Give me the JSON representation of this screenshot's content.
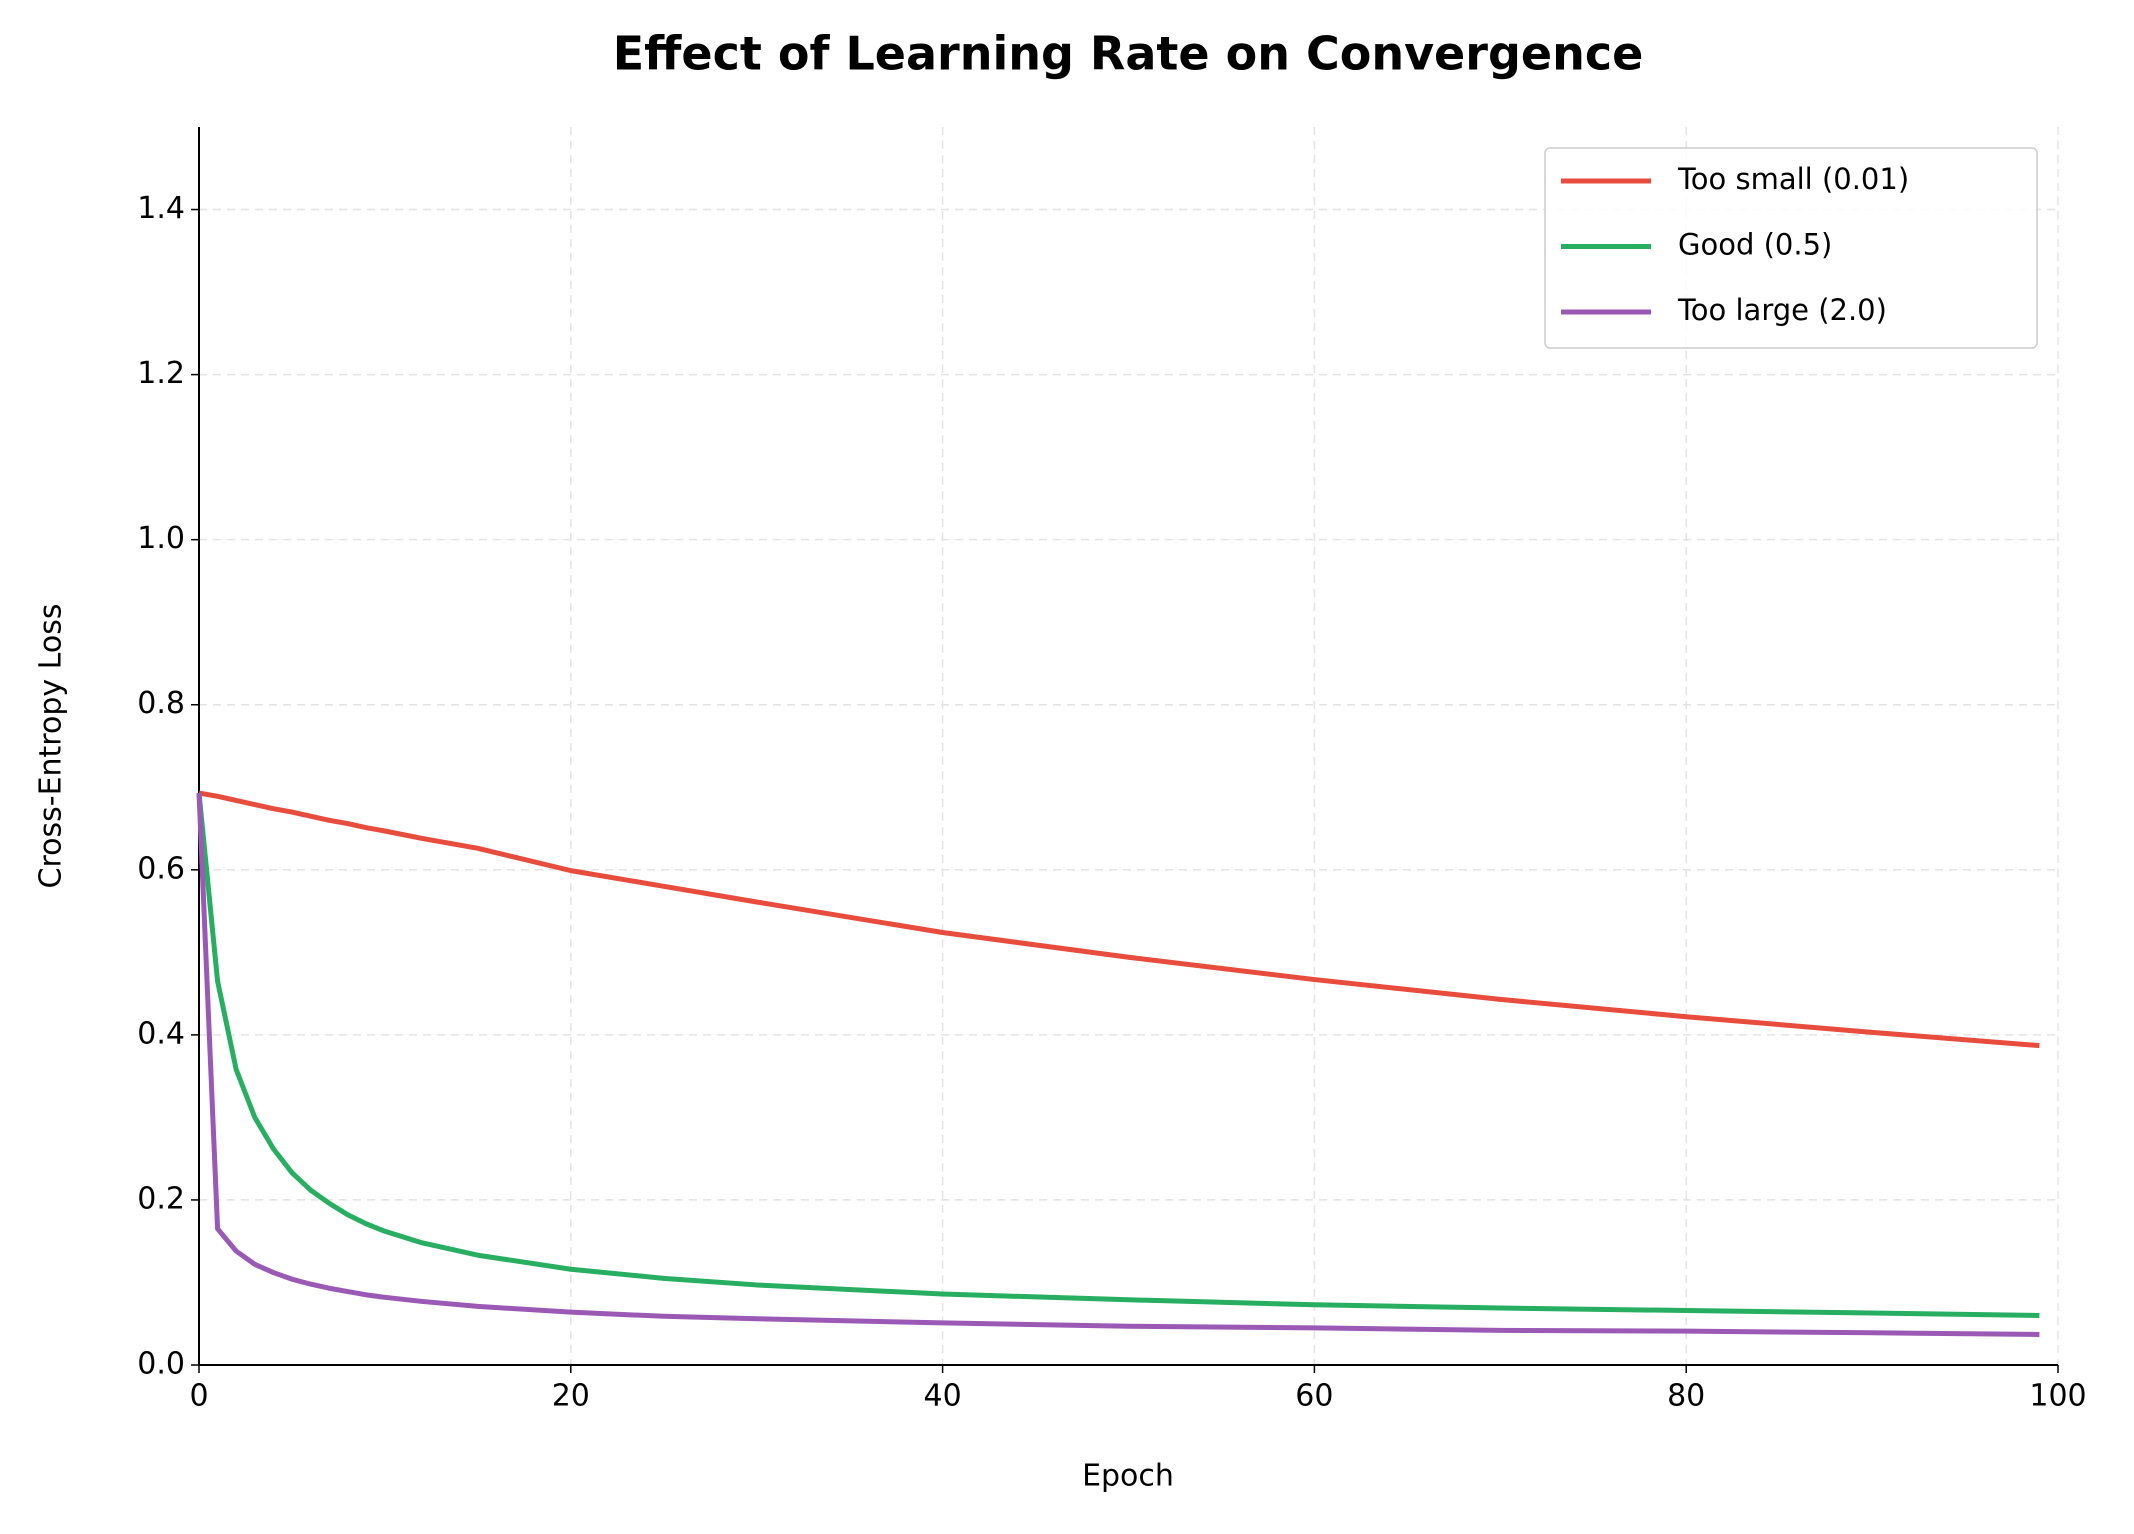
{
  "chart_data": {
    "type": "line",
    "title": "Effect of Learning Rate on Convergence",
    "xlabel": "Epoch",
    "ylabel": "Cross-Entropy Loss",
    "x": [
      0,
      1,
      2,
      3,
      4,
      5,
      6,
      7,
      8,
      9,
      10,
      12,
      15,
      20,
      25,
      30,
      40,
      50,
      60,
      70,
      80,
      90,
      99
    ],
    "series": [
      {
        "name": "Too small (0.01)",
        "color": "#e74c3c",
        "values": [
          0.693,
          0.689,
          0.684,
          0.679,
          0.674,
          0.67,
          0.665,
          0.66,
          0.656,
          0.651,
          0.647,
          0.638,
          0.626,
          0.599,
          0.58,
          0.561,
          0.524,
          0.494,
          0.467,
          0.443,
          0.422,
          0.403,
          0.387
        ]
      },
      {
        "name": "Good (0.5)",
        "color": "#27ae60",
        "values": [
          0.693,
          0.465,
          0.358,
          0.3,
          0.262,
          0.233,
          0.212,
          0.196,
          0.182,
          0.171,
          0.162,
          0.148,
          0.133,
          0.116,
          0.105,
          0.097,
          0.086,
          0.079,
          0.073,
          0.069,
          0.066,
          0.063,
          0.06
        ]
      },
      {
        "name": "Too large (2.0)",
        "color": "#9b59b6",
        "values": [
          0.693,
          0.165,
          0.138,
          0.122,
          0.112,
          0.104,
          0.098,
          0.093,
          0.089,
          0.085,
          0.082,
          0.077,
          0.071,
          0.064,
          0.059,
          0.056,
          0.051,
          0.047,
          0.045,
          0.042,
          0.041,
          0.039,
          0.037
        ]
      }
    ],
    "xlim": [
      0,
      100
    ],
    "xticks": [
      0,
      20,
      40,
      60,
      80,
      100
    ],
    "ylim": [
      0,
      1.5
    ],
    "yticks": [
      {
        "value": 0,
        "label": "0.0"
      },
      0.2,
      0.4,
      0.6,
      0.8,
      {
        "value": 1,
        "label": "1.0"
      },
      1.2,
      1.4
    ],
    "grid": true,
    "legend": "upper right"
  }
}
